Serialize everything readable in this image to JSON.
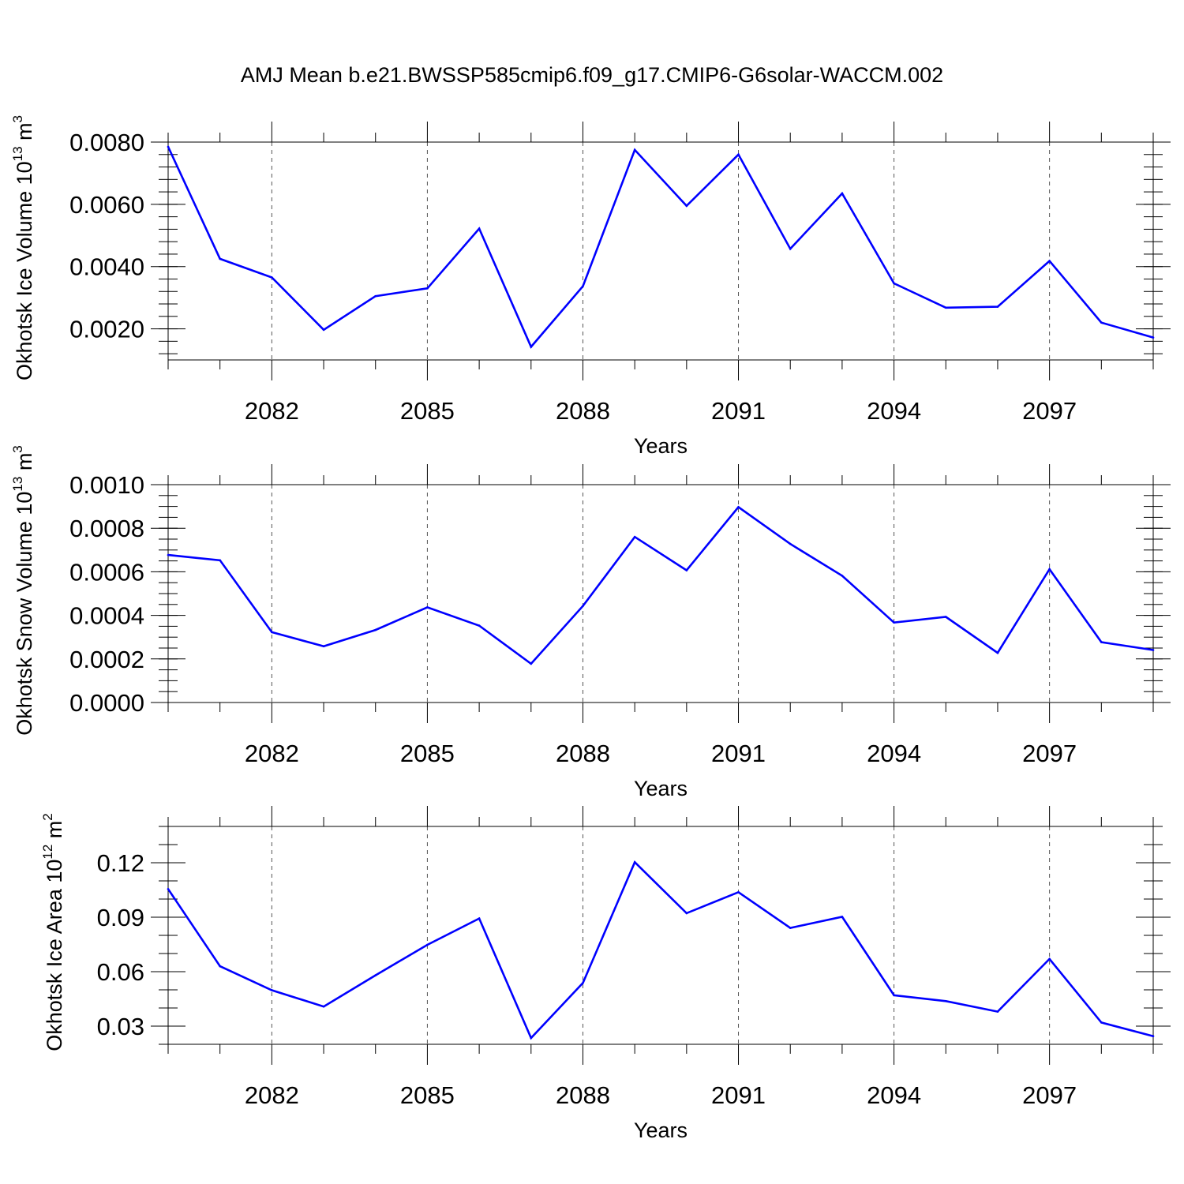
{
  "title": "AMJ Mean b.e21.BWSSP585cmip6.f09_g17.CMIP6-G6solar-WACCM.002",
  "line_color": "#0000ff",
  "chart_data": [
    {
      "type": "line",
      "xlabel": "Years",
      "ylabel": {
        "text": "Okhotsk Ice Volume 10",
        "exp": "13",
        "unit": " m",
        "unit_exp": "3"
      },
      "x": [
        2080,
        2081,
        2082,
        2083,
        2084,
        2085,
        2086,
        2087,
        2088,
        2089,
        2090,
        2091,
        2092,
        2093,
        2094,
        2095,
        2096,
        2097,
        2098,
        2099
      ],
      "values": [
        0.00785,
        0.00425,
        0.00365,
        0.00197,
        0.00305,
        0.0033,
        0.00522,
        0.00142,
        0.00337,
        0.00775,
        0.00595,
        0.0076,
        0.00457,
        0.00635,
        0.00346,
        0.00268,
        0.00271,
        0.00418,
        0.0022,
        0.00172
      ],
      "xlim": [
        2080,
        2099
      ],
      "ylim": [
        0.001,
        0.008
      ],
      "y_ticks": [
        0.002,
        0.004,
        0.006,
        0.008
      ],
      "y_tick_labels": [
        "0.0020",
        "0.0040",
        "0.0060",
        "0.0080"
      ],
      "y_minor_step": 0.0004,
      "x_ticks": [
        2082,
        2085,
        2088,
        2091,
        2094,
        2097
      ],
      "x_tick_labels": [
        "2082",
        "2085",
        "2088",
        "2091",
        "2094",
        "2097"
      ],
      "grid": "vertical dashed at x ticks"
    },
    {
      "type": "line",
      "xlabel": "Years",
      "ylabel": {
        "text": "Okhotsk Snow Volume 10",
        "exp": "13",
        "unit": " m",
        "unit_exp": "3"
      },
      "x": [
        2080,
        2081,
        2082,
        2083,
        2084,
        2085,
        2086,
        2087,
        2088,
        2089,
        2090,
        2091,
        2092,
        2093,
        2094,
        2095,
        2096,
        2097,
        2098,
        2099
      ],
      "values": [
        0.000677,
        0.000653,
        0.000323,
        0.000258,
        0.000333,
        0.000437,
        0.000353,
        0.000178,
        0.000443,
        0.00076,
        0.000607,
        0.000897,
        0.000728,
        0.000582,
        0.000367,
        0.000393,
        0.000228,
        0.000612,
        0.000277,
        0.000241
      ],
      "xlim": [
        2080,
        2099
      ],
      "ylim": [
        0.0,
        0.001
      ],
      "y_ticks": [
        0.0,
        0.0002,
        0.0004,
        0.0006,
        0.0008,
        0.001
      ],
      "y_tick_labels": [
        "0.0000",
        "0.0002",
        "0.0004",
        "0.0006",
        "0.0008",
        "0.0010"
      ],
      "y_minor_step": 5e-05,
      "x_ticks": [
        2082,
        2085,
        2088,
        2091,
        2094,
        2097
      ],
      "x_tick_labels": [
        "2082",
        "2085",
        "2088",
        "2091",
        "2094",
        "2097"
      ],
      "grid": "vertical dashed at x ticks"
    },
    {
      "type": "line",
      "xlabel": "Years",
      "ylabel": {
        "text": "Okhotsk Ice Area 10",
        "exp": "12",
        "unit": " m",
        "unit_exp": "2"
      },
      "x": [
        2080,
        2081,
        2082,
        2083,
        2084,
        2085,
        2086,
        2087,
        2088,
        2089,
        2090,
        2091,
        2092,
        2093,
        2094,
        2095,
        2096,
        2097,
        2098,
        2099
      ],
      "values": [
        0.1055,
        0.063,
        0.0498,
        0.0408,
        0.058,
        0.0748,
        0.0893,
        0.0235,
        0.0538,
        0.1203,
        0.0922,
        0.1038,
        0.0841,
        0.0902,
        0.047,
        0.0438,
        0.038,
        0.067,
        0.032,
        0.0245
      ],
      "xlim": [
        2080,
        2099
      ],
      "ylim": [
        0.02,
        0.14
      ],
      "y_ticks": [
        0.03,
        0.06,
        0.09,
        0.12
      ],
      "y_tick_labels": [
        "0.03",
        "0.06",
        "0.09",
        "0.12"
      ],
      "y_minor_step": 0.01,
      "x_ticks": [
        2082,
        2085,
        2088,
        2091,
        2094,
        2097
      ],
      "x_tick_labels": [
        "2082",
        "2085",
        "2088",
        "2091",
        "2094",
        "2097"
      ],
      "grid": "vertical dashed at x ticks"
    }
  ]
}
